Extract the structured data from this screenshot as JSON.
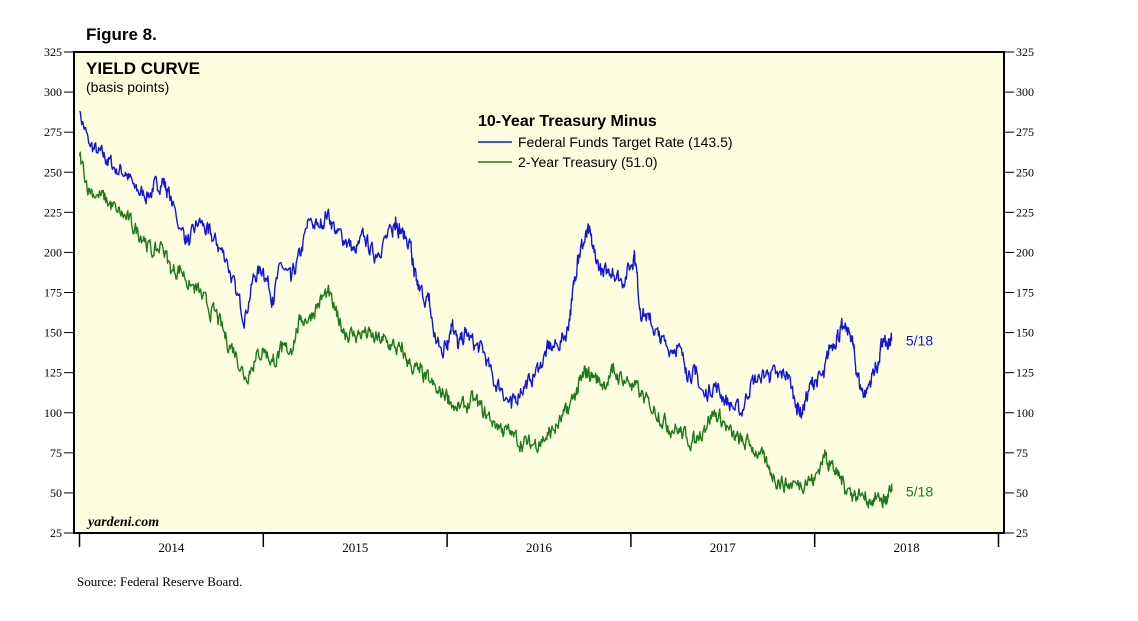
{
  "figure_label": "Figure 8.",
  "source": "Source: Federal Reserve Board.",
  "watermark": "yardeni.com",
  "colors": {
    "plot_bg": "#fdfde0",
    "frame": "#000000",
    "series_fed": "#1515d8",
    "series_2yr": "#1d7a1d"
  },
  "chart_data": {
    "type": "line",
    "title": "YIELD CURVE",
    "subtitle": "(basis points)",
    "legend_title": "10-Year Treasury Minus",
    "legend_position": "top-center",
    "ylim": [
      25,
      325
    ],
    "xlim": [
      2013.97,
      2019.03
    ],
    "y_ticks": [
      25,
      50,
      75,
      100,
      125,
      150,
      175,
      200,
      225,
      250,
      275,
      300,
      325
    ],
    "x_tick_years": [
      2014,
      2015,
      2016,
      2017,
      2018,
      2019
    ],
    "x_labels": [
      {
        "text": "2014",
        "at": 2014.5
      },
      {
        "text": "2015",
        "at": 2015.5
      },
      {
        "text": "2016",
        "at": 2016.5
      },
      {
        "text": "2017",
        "at": 2017.5
      },
      {
        "text": "2018",
        "at": 2018.5
      }
    ],
    "grid": false,
    "series": [
      {
        "name": "Federal Funds Target Rate (143.5)",
        "end_label": "5/18",
        "color": "#1515d8",
        "points": [
          [
            2014.0,
            288
          ],
          [
            2014.05,
            268
          ],
          [
            2014.1,
            262
          ],
          [
            2014.15,
            258
          ],
          [
            2014.2,
            252
          ],
          [
            2014.25,
            250
          ],
          [
            2014.3,
            240
          ],
          [
            2014.35,
            236
          ],
          [
            2014.4,
            238
          ],
          [
            2014.45,
            246
          ],
          [
            2014.48,
            238
          ],
          [
            2014.55,
            215
          ],
          [
            2014.6,
            206
          ],
          [
            2014.65,
            220
          ],
          [
            2014.7,
            212
          ],
          [
            2014.75,
            205
          ],
          [
            2014.8,
            196
          ],
          [
            2014.85,
            175
          ],
          [
            2014.9,
            160
          ],
          [
            2014.95,
            185
          ],
          [
            2015.0,
            190
          ],
          [
            2015.05,
            172
          ],
          [
            2015.1,
            192
          ],
          [
            2015.15,
            182
          ],
          [
            2015.2,
            198
          ],
          [
            2015.25,
            220
          ],
          [
            2015.3,
            216
          ],
          [
            2015.35,
            225
          ],
          [
            2015.4,
            212
          ],
          [
            2015.45,
            208
          ],
          [
            2015.5,
            200
          ],
          [
            2015.55,
            210
          ],
          [
            2015.6,
            198
          ],
          [
            2015.65,
            206
          ],
          [
            2015.7,
            212
          ],
          [
            2015.72,
            222
          ],
          [
            2015.75,
            212
          ],
          [
            2015.8,
            206
          ],
          [
            2015.82,
            185
          ],
          [
            2015.85,
            176
          ],
          [
            2015.9,
            170
          ],
          [
            2015.93,
            148
          ],
          [
            2015.97,
            138
          ],
          [
            2016.0,
            145
          ],
          [
            2016.03,
            158
          ],
          [
            2016.06,
            140
          ],
          [
            2016.1,
            150
          ],
          [
            2016.15,
            142
          ],
          [
            2016.2,
            138
          ],
          [
            2016.25,
            120
          ],
          [
            2016.3,
            115
          ],
          [
            2016.35,
            103
          ],
          [
            2016.4,
            115
          ],
          [
            2016.45,
            120
          ],
          [
            2016.5,
            128
          ],
          [
            2016.55,
            140
          ],
          [
            2016.6,
            142
          ],
          [
            2016.65,
            150
          ],
          [
            2016.68,
            170
          ],
          [
            2016.71,
            198
          ],
          [
            2016.74,
            205
          ],
          [
            2016.77,
            212
          ],
          [
            2016.8,
            200
          ],
          [
            2016.85,
            185
          ],
          [
            2016.9,
            190
          ],
          [
            2016.95,
            182
          ],
          [
            2017.0,
            192
          ],
          [
            2017.02,
            200
          ],
          [
            2017.05,
            165
          ],
          [
            2017.1,
            158
          ],
          [
            2017.15,
            148
          ],
          [
            2017.2,
            140
          ],
          [
            2017.25,
            142
          ],
          [
            2017.3,
            128
          ],
          [
            2017.35,
            124
          ],
          [
            2017.4,
            110
          ],
          [
            2017.45,
            118
          ],
          [
            2017.5,
            110
          ],
          [
            2017.55,
            104
          ],
          [
            2017.6,
            100
          ],
          [
            2017.65,
            118
          ],
          [
            2017.7,
            122
          ],
          [
            2017.75,
            125
          ],
          [
            2017.8,
            122
          ],
          [
            2017.85,
            125
          ],
          [
            2017.9,
            105
          ],
          [
            2017.93,
            100
          ],
          [
            2017.97,
            115
          ],
          [
            2018.0,
            120
          ],
          [
            2018.05,
            122
          ],
          [
            2018.08,
            140
          ],
          [
            2018.12,
            148
          ],
          [
            2018.15,
            152
          ],
          [
            2018.2,
            148
          ],
          [
            2018.22,
            132
          ],
          [
            2018.25,
            115
          ],
          [
            2018.28,
            112
          ],
          [
            2018.32,
            126
          ],
          [
            2018.35,
            132
          ],
          [
            2018.37,
            145
          ],
          [
            2018.4,
            140
          ],
          [
            2018.42,
            145
          ]
        ]
      },
      {
        "name": "2-Year Treasury (51.0)",
        "end_label": "5/18",
        "color": "#1d7a1d",
        "points": [
          [
            2014.0,
            260
          ],
          [
            2014.05,
            240
          ],
          [
            2014.1,
            236
          ],
          [
            2014.15,
            232
          ],
          [
            2014.2,
            226
          ],
          [
            2014.25,
            222
          ],
          [
            2014.3,
            215
          ],
          [
            2014.35,
            210
          ],
          [
            2014.4,
            198
          ],
          [
            2014.45,
            205
          ],
          [
            2014.5,
            188
          ],
          [
            2014.55,
            190
          ],
          [
            2014.6,
            180
          ],
          [
            2014.65,
            175
          ],
          [
            2014.7,
            165
          ],
          [
            2014.75,
            160
          ],
          [
            2014.8,
            145
          ],
          [
            2014.85,
            138
          ],
          [
            2014.9,
            122
          ],
          [
            2014.95,
            132
          ],
          [
            2015.0,
            140
          ],
          [
            2015.05,
            132
          ],
          [
            2015.1,
            138
          ],
          [
            2015.15,
            140
          ],
          [
            2015.2,
            158
          ],
          [
            2015.25,
            160
          ],
          [
            2015.3,
            168
          ],
          [
            2015.35,
            175
          ],
          [
            2015.4,
            160
          ],
          [
            2015.45,
            150
          ],
          [
            2015.5,
            148
          ],
          [
            2015.55,
            150
          ],
          [
            2015.6,
            146
          ],
          [
            2015.65,
            145
          ],
          [
            2015.7,
            142
          ],
          [
            2015.75,
            138
          ],
          [
            2015.8,
            130
          ],
          [
            2015.85,
            125
          ],
          [
            2015.9,
            120
          ],
          [
            2015.95,
            112
          ],
          [
            2016.0,
            112
          ],
          [
            2016.05,
            102
          ],
          [
            2016.1,
            104
          ],
          [
            2016.15,
            108
          ],
          [
            2016.2,
            100
          ],
          [
            2016.25,
            95
          ],
          [
            2016.3,
            90
          ],
          [
            2016.35,
            86
          ],
          [
            2016.4,
            82
          ],
          [
            2016.45,
            80
          ],
          [
            2016.5,
            82
          ],
          [
            2016.55,
            86
          ],
          [
            2016.6,
            92
          ],
          [
            2016.65,
            100
          ],
          [
            2016.7,
            112
          ],
          [
            2016.73,
            120
          ],
          [
            2016.76,
            126
          ],
          [
            2016.8,
            122
          ],
          [
            2016.85,
            118
          ],
          [
            2016.9,
            125
          ],
          [
            2016.95,
            122
          ],
          [
            2017.0,
            118
          ],
          [
            2017.05,
            112
          ],
          [
            2017.1,
            105
          ],
          [
            2017.15,
            100
          ],
          [
            2017.2,
            92
          ],
          [
            2017.25,
            90
          ],
          [
            2017.3,
            85
          ],
          [
            2017.35,
            82
          ],
          [
            2017.4,
            92
          ],
          [
            2017.45,
            100
          ],
          [
            2017.5,
            95
          ],
          [
            2017.55,
            85
          ],
          [
            2017.6,
            82
          ],
          [
            2017.65,
            80
          ],
          [
            2017.7,
            74
          ],
          [
            2017.75,
            65
          ],
          [
            2017.8,
            58
          ],
          [
            2017.85,
            55
          ],
          [
            2017.9,
            56
          ],
          [
            2017.95,
            58
          ],
          [
            2018.0,
            58
          ],
          [
            2018.05,
            74
          ],
          [
            2018.08,
            70
          ],
          [
            2018.12,
            62
          ],
          [
            2018.16,
            56
          ],
          [
            2018.2,
            50
          ],
          [
            2018.25,
            48
          ],
          [
            2018.3,
            46
          ],
          [
            2018.35,
            47
          ],
          [
            2018.38,
            45
          ],
          [
            2018.4,
            47
          ],
          [
            2018.42,
            51
          ]
        ]
      }
    ]
  }
}
